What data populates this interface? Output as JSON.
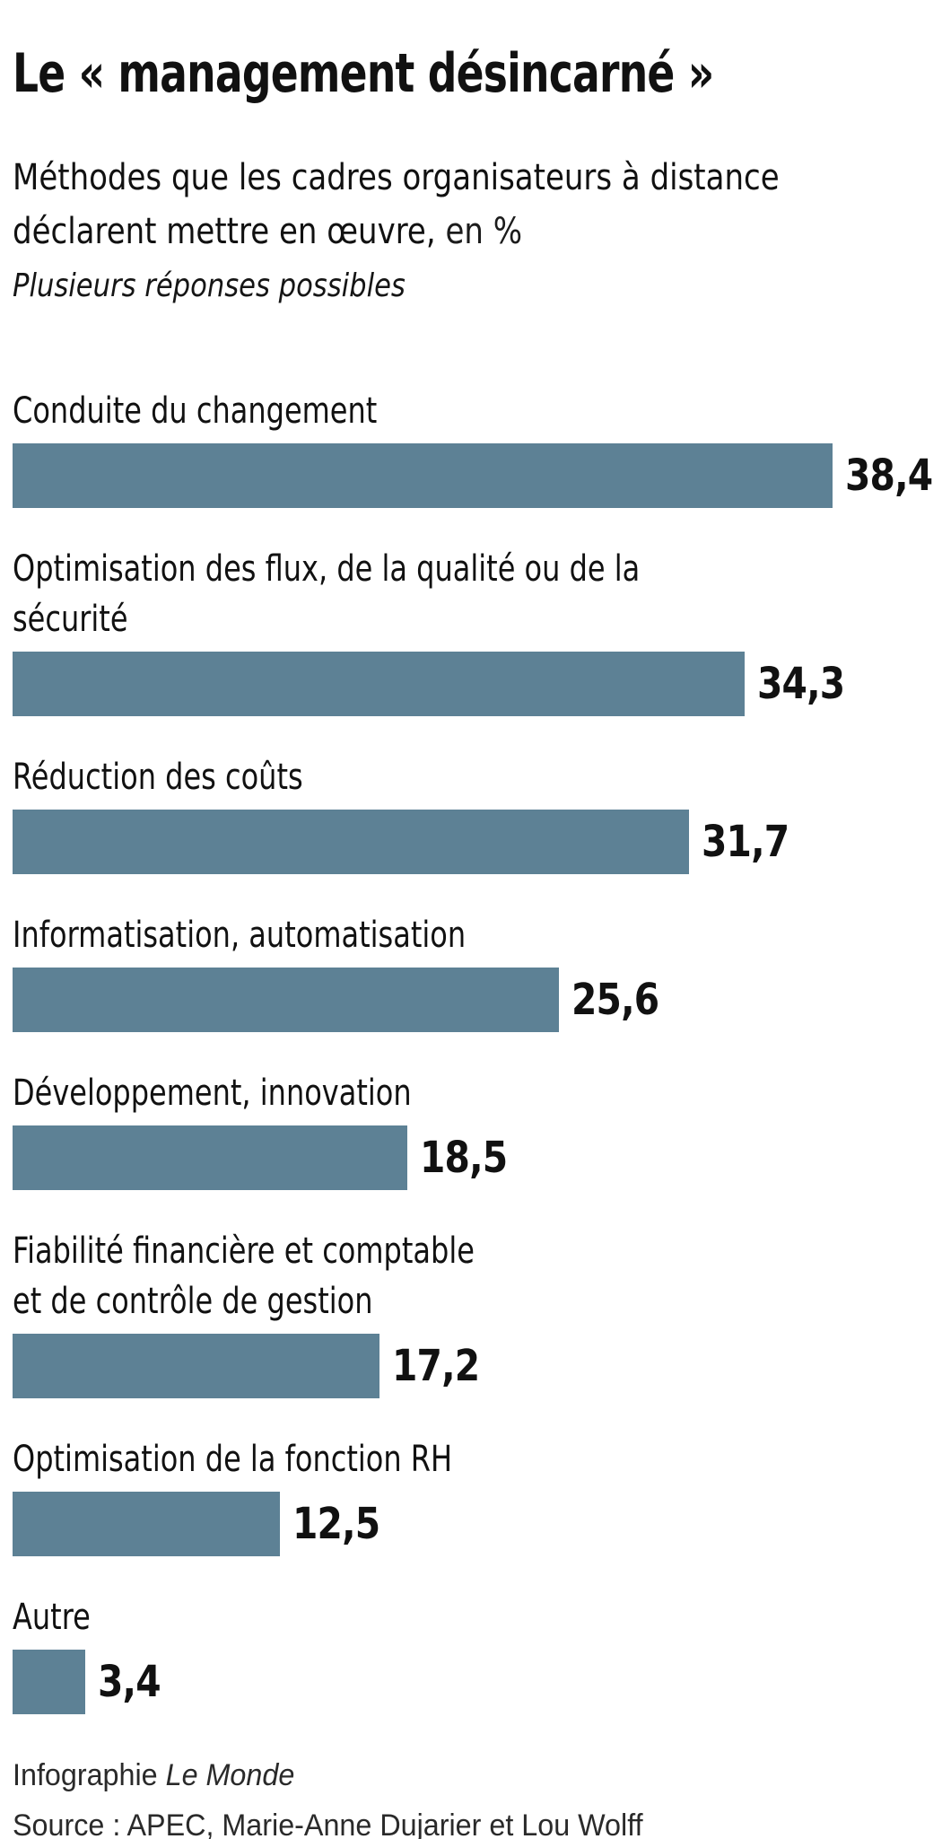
{
  "title": "Le « management désincarné »",
  "subtitle": {
    "line1": "Méthodes que les cadres organisateurs à distance",
    "line2_main": "déclarent mettre en œuvre,",
    "line2_unit": " en %",
    "note": "Plusieurs réponses possibles"
  },
  "chart_data": {
    "type": "bar",
    "orientation": "horizontal",
    "title": "Le « management désincarné »",
    "xlabel": "",
    "ylabel": "",
    "unit": "%",
    "xlim": [
      0,
      40
    ],
    "grid": false,
    "legend": false,
    "bar_color": "#5d8195",
    "categories": [
      "Conduite du changement",
      "Optimisation des flux, de la qualité ou de la sécurité",
      "Réduction des coûts",
      "Informatisation, automatisation",
      "Développement, innovation",
      "Fiabilité financière et comptable et de contrôle de gestion",
      "Optimisation de la fonction RH",
      "Autre"
    ],
    "values": [
      38.4,
      34.3,
      31.7,
      25.6,
      18.5,
      17.2,
      12.5,
      3.4
    ],
    "value_labels": [
      "38,4",
      "34,3",
      "31,7",
      "25,6",
      "18,5",
      "17,2",
      "12,5",
      "3,4"
    ],
    "label_lines": [
      [
        "Conduite du changement"
      ],
      [
        "Optimisation des flux, de la qualité ou de la sécurité"
      ],
      [
        "Réduction des coûts"
      ],
      [
        "Informatisation, automatisation"
      ],
      [
        "Développement, innovation"
      ],
      [
        "Fiabilité financière et comptable",
        "et de contrôle de gestion"
      ],
      [
        "Optimisation de la fonction RH"
      ],
      [
        "Autre"
      ]
    ]
  },
  "footer": {
    "credit_prefix": "Infographie ",
    "credit_brand": "Le Monde",
    "source": "Source : APEC, Marie-Anne Dujarier et Lou Wolff"
  },
  "colors": {
    "bar": "#5d8195",
    "text": "#111111",
    "footer_text": "#2a2a2a"
  }
}
